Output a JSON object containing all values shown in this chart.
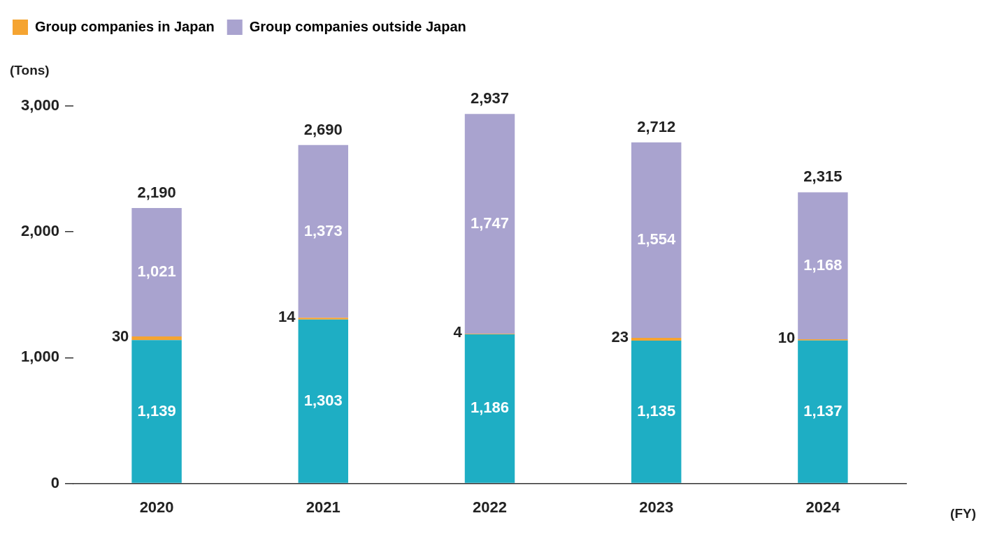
{
  "chart_data": {
    "type": "bar",
    "stacked": true,
    "categories": [
      "2020",
      "2021",
      "2022",
      "2023",
      "2024"
    ],
    "series": [
      {
        "color": "#1eaec4",
        "values": [
          1139,
          1303,
          1186,
          1135,
          1137
        ],
        "value_labels": [
          "1,139",
          "1,303",
          "1,186",
          "1,135",
          "1,137"
        ]
      },
      {
        "name": "Group companies in Japan",
        "color": "#f5a431",
        "values": [
          30,
          14,
          4,
          23,
          10
        ],
        "value_labels": [
          "30",
          "14",
          "4",
          "23",
          "10"
        ]
      },
      {
        "name": "Group companies outside Japan",
        "color": "#a9a3cf",
        "values": [
          1021,
          1373,
          1747,
          1554,
          1168
        ],
        "value_labels": [
          "1,021",
          "1,373",
          "1,747",
          "1,554",
          "1,168"
        ]
      }
    ],
    "totals": [
      "2,190",
      "2,690",
      "2,937",
      "2,712",
      "2,315"
    ],
    "ylabel": "(Tons)",
    "xlabel": "(FY)",
    "ylim": [
      0,
      3000
    ],
    "yticks": [
      {
        "value": 0,
        "label": "0"
      },
      {
        "value": 1000,
        "label": "1,000"
      },
      {
        "value": 2000,
        "label": "2,000"
      },
      {
        "value": 3000,
        "label": "3,000"
      }
    ],
    "legend": "top left",
    "grid": false
  }
}
